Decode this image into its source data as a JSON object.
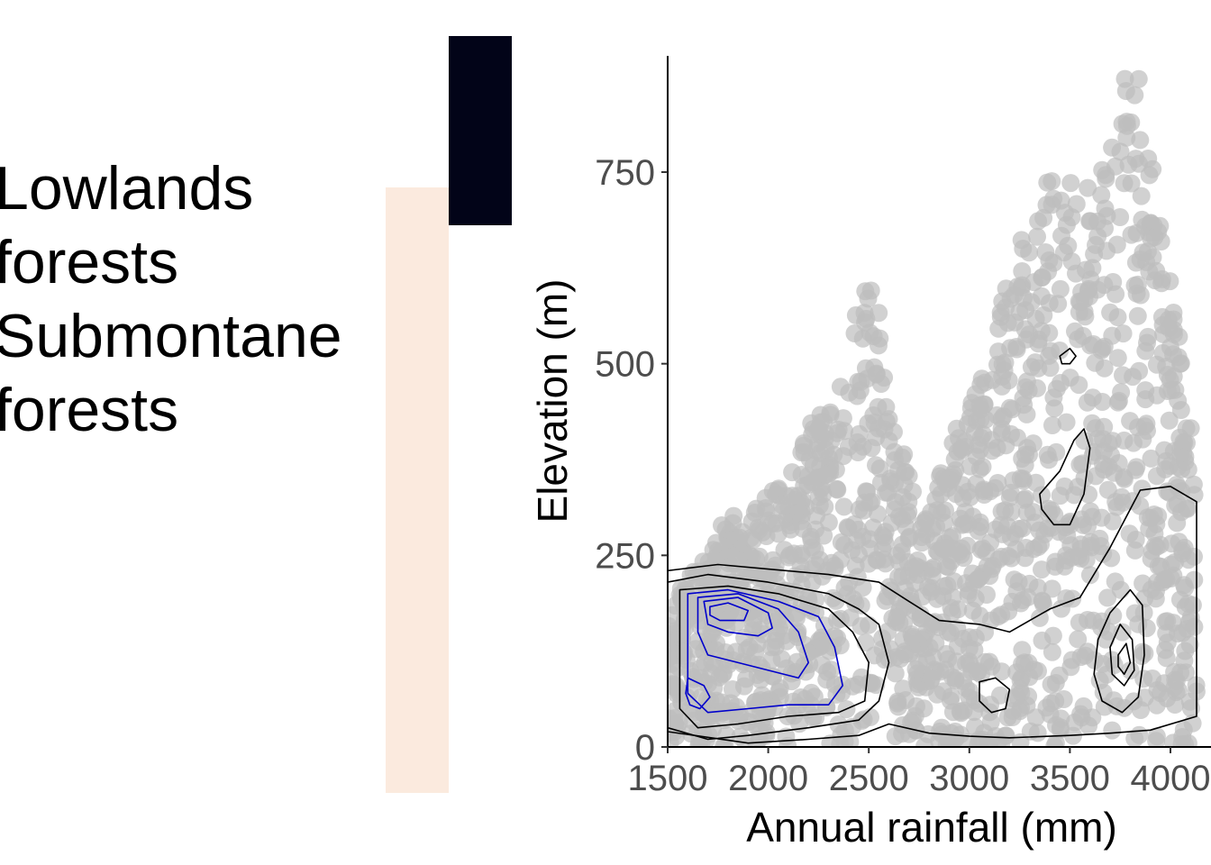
{
  "legend": {
    "labels": [
      "Lowlands forests",
      "Submontane forests"
    ],
    "colors": [
      "#fbeade",
      "#020418"
    ]
  },
  "chart_data": [
    {
      "type": "bar",
      "categories": [
        "Lowlands forests",
        "Submontane forests"
      ],
      "values": [
        0.8,
        0.25
      ],
      "ylim": [
        0,
        1
      ],
      "colors": [
        "#fbeade",
        "#020418"
      ],
      "xlabel": "",
      "ylabel": "",
      "axes_visible": false
    },
    {
      "type": "scatter",
      "xlabel": "Annual rainfall (mm)",
      "ylabel": "Elevation (m)",
      "xlim": [
        1500,
        4130
      ],
      "ylim": [
        0,
        900
      ],
      "x_ticks": [
        1500,
        2000,
        2500,
        3000,
        3500,
        4000
      ],
      "y_ticks": [
        0,
        250,
        500,
        750
      ],
      "x_tick_labels": [
        "1500",
        "2000",
        "2500",
        "3000",
        "3500",
        "4000"
      ],
      "y_tick_labels": [
        "0",
        "250",
        "500",
        "750"
      ],
      "grid": false,
      "point_color": "#bebebe",
      "contour_colors": [
        "#000000",
        "#0000cc"
      ],
      "point_density_envelope": [
        [
          1500,
          230
        ],
        [
          1600,
          220
        ],
        [
          1700,
          260
        ],
        [
          1800,
          310
        ],
        [
          1900,
          300
        ],
        [
          2000,
          330
        ],
        [
          2100,
          360
        ],
        [
          2200,
          420
        ],
        [
          2300,
          450
        ],
        [
          2400,
          500
        ],
        [
          2450,
          600
        ],
        [
          2500,
          620
        ],
        [
          2550,
          600
        ],
        [
          2600,
          450
        ],
        [
          2700,
          360
        ],
        [
          2800,
          300
        ],
        [
          2900,
          400
        ],
        [
          3000,
          450
        ],
        [
          3100,
          520
        ],
        [
          3200,
          620
        ],
        [
          3300,
          690
        ],
        [
          3400,
          750
        ],
        [
          3500,
          740
        ],
        [
          3600,
          730
        ],
        [
          3700,
          780
        ],
        [
          3750,
          860
        ],
        [
          3800,
          890
        ],
        [
          3850,
          870
        ],
        [
          3900,
          800
        ],
        [
          4000,
          620
        ],
        [
          4100,
          430
        ],
        [
          4130,
          400
        ]
      ],
      "density_contours": [
        {
          "level": 1,
          "color": "#000000",
          "points": [
            [
              1500,
              230
            ],
            [
              1750,
              238
            ],
            [
              2000,
              232
            ],
            [
              2300,
              225
            ],
            [
              2550,
              215
            ],
            [
              2700,
              190
            ],
            [
              2850,
              165
            ],
            [
              3050,
              160
            ],
            [
              3200,
              150
            ],
            [
              3400,
              180
            ],
            [
              3550,
              195
            ],
            [
              3700,
              260
            ],
            [
              3850,
              335
            ],
            [
              4000,
              340
            ],
            [
              4130,
              320
            ],
            [
              4130,
              40
            ],
            [
              3900,
              22
            ],
            [
              3700,
              18
            ],
            [
              3500,
              15
            ],
            [
              3200,
              12
            ],
            [
              3000,
              14
            ],
            [
              2800,
              18
            ],
            [
              2600,
              30
            ],
            [
              2450,
              15
            ],
            [
              2200,
              10
            ],
            [
              1900,
              5
            ],
            [
              1500,
              20
            ]
          ]
        },
        {
          "level": 2,
          "color": "#000000",
          "points": [
            [
              1500,
              215
            ],
            [
              1700,
              225
            ],
            [
              2000,
              215
            ],
            [
              2300,
              200
            ],
            [
              2450,
              180
            ],
            [
              2550,
              160
            ],
            [
              2600,
              110
            ],
            [
              2550,
              60
            ],
            [
              2450,
              35
            ],
            [
              2200,
              25
            ],
            [
              1900,
              15
            ],
            [
              1700,
              10
            ],
            [
              1500,
              25
            ]
          ]
        },
        {
          "level": 3,
          "color": "#000000",
          "points": [
            [
              1560,
              205
            ],
            [
              1800,
              210
            ],
            [
              2050,
              200
            ],
            [
              2300,
              180
            ],
            [
              2420,
              150
            ],
            [
              2500,
              110
            ],
            [
              2480,
              60
            ],
            [
              2350,
              45
            ],
            [
              2100,
              40
            ],
            [
              1850,
              30
            ],
            [
              1650,
              25
            ],
            [
              1560,
              50
            ]
          ]
        },
        {
          "level": 4,
          "color": "#0000cc",
          "points": [
            [
              1600,
              200
            ],
            [
              1800,
              205
            ],
            [
              2050,
              190
            ],
            [
              2250,
              170
            ],
            [
              2330,
              130
            ],
            [
              2370,
              80
            ],
            [
              2300,
              55
            ],
            [
              2100,
              55
            ],
            [
              1900,
              50
            ],
            [
              1700,
              45
            ],
            [
              1600,
              70
            ]
          ]
        },
        {
          "level": 5,
          "color": "#0000cc",
          "points": [
            [
              1650,
              195
            ],
            [
              1850,
              200
            ],
            [
              2050,
              180
            ],
            [
              2150,
              150
            ],
            [
              2200,
              110
            ],
            [
              2150,
              90
            ],
            [
              2000,
              100
            ],
            [
              1850,
              110
            ],
            [
              1700,
              120
            ],
            [
              1650,
              150
            ]
          ]
        },
        {
          "level": 6,
          "color": "#0000cc",
          "points": [
            [
              1680,
              190
            ],
            [
              1850,
              195
            ],
            [
              2000,
              175
            ],
            [
              2020,
              155
            ],
            [
              1950,
              145
            ],
            [
              1800,
              150
            ],
            [
              1700,
              160
            ]
          ]
        },
        {
          "level": 7,
          "color": "#0000cc",
          "points": [
            [
              1710,
              183
            ],
            [
              1800,
              188
            ],
            [
              1900,
              178
            ],
            [
              1880,
              165
            ],
            [
              1760,
              165
            ],
            [
              1710,
              172
            ]
          ]
        },
        {
          "level": 5,
          "color": "#0000cc",
          "points": [
            [
              1600,
              90
            ],
            [
              1680,
              80
            ],
            [
              1710,
              65
            ],
            [
              1660,
              50
            ],
            [
              1610,
              55
            ],
            [
              1590,
              70
            ]
          ]
        },
        {
          "level": 3,
          "color": "#000000",
          "points": [
            [
              3050,
              85
            ],
            [
              3130,
              90
            ],
            [
              3200,
              75
            ],
            [
              3180,
              50
            ],
            [
              3110,
              45
            ],
            [
              3050,
              60
            ]
          ]
        },
        {
          "level": 2,
          "color": "#000000",
          "points": [
            [
              3640,
              140
            ],
            [
              3700,
              175
            ],
            [
              3800,
              205
            ],
            [
              3860,
              185
            ],
            [
              3870,
              120
            ],
            [
              3840,
              65
            ],
            [
              3760,
              45
            ],
            [
              3660,
              60
            ],
            [
              3620,
              95
            ]
          ]
        },
        {
          "level": 3,
          "color": "#000000",
          "points": [
            [
              3700,
              130
            ],
            [
              3750,
              160
            ],
            [
              3810,
              140
            ],
            [
              3820,
              100
            ],
            [
              3770,
              80
            ],
            [
              3710,
              95
            ]
          ]
        },
        {
          "level": 4,
          "color": "#000000",
          "points": [
            [
              3740,
              120
            ],
            [
              3780,
              135
            ],
            [
              3800,
              110
            ],
            [
              3770,
              95
            ],
            [
              3740,
              105
            ]
          ]
        },
        {
          "level": 2,
          "color": "#000000",
          "points": [
            [
              3350,
              330
            ],
            [
              3450,
              360
            ],
            [
              3520,
              400
            ],
            [
              3570,
              415
            ],
            [
              3600,
              390
            ],
            [
              3570,
              330
            ],
            [
              3500,
              290
            ],
            [
              3420,
              290
            ],
            [
              3360,
              310
            ]
          ]
        },
        {
          "level": 2,
          "color": "#000000",
          "points": [
            [
              3450,
              510
            ],
            [
              3500,
              520
            ],
            [
              3530,
              510
            ],
            [
              3500,
              500
            ],
            [
              3460,
              500
            ]
          ]
        }
      ]
    }
  ]
}
